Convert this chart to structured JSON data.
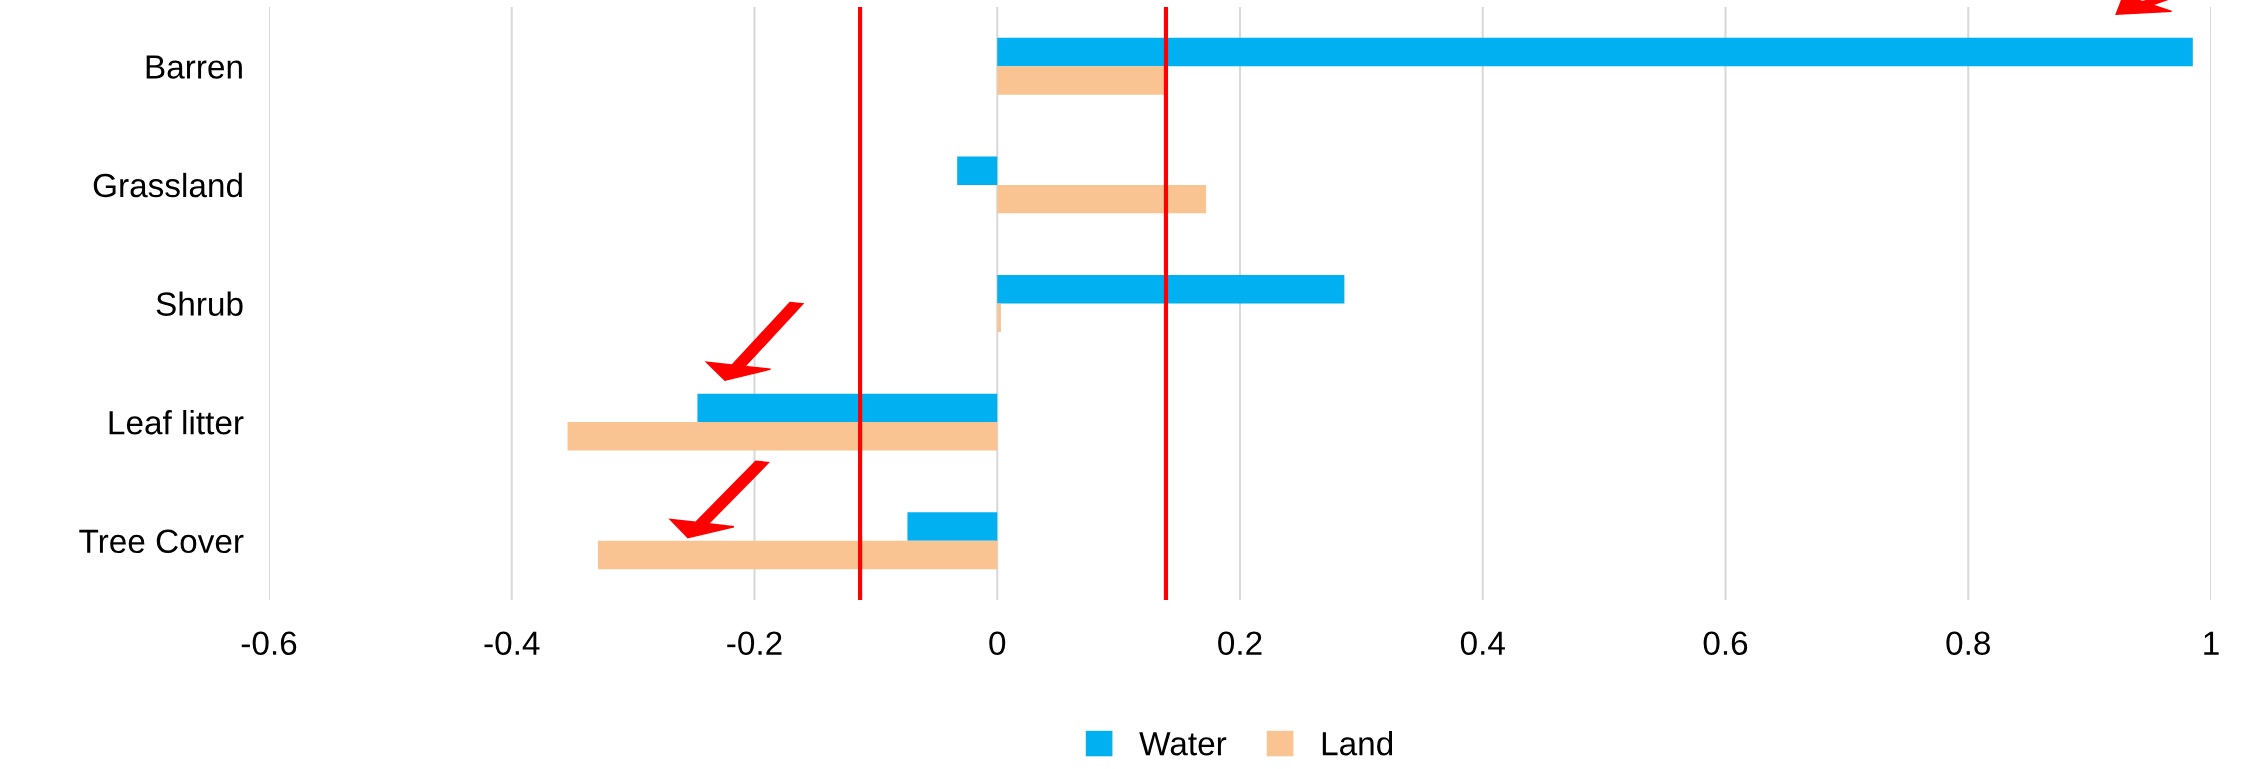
{
  "chart_data": {
    "type": "bar",
    "orientation": "horizontal",
    "categories": [
      "Barren",
      "Grassland",
      "Shrub",
      "Leaf litter",
      "Tree Cover"
    ],
    "series": [
      {
        "name": "Water",
        "color": "#00b0f0",
        "values": [
          0.985,
          -0.033,
          0.286,
          -0.247,
          -0.074
        ]
      },
      {
        "name": "Land",
        "color": "#f9c392",
        "values": [
          0.138,
          0.172,
          0.003,
          -0.354,
          -0.329
        ]
      }
    ],
    "xlim": [
      -0.6,
      1
    ],
    "xticks": [
      -0.6,
      -0.4,
      -0.2,
      0,
      0.2,
      0.4,
      0.6,
      0.8,
      1
    ],
    "grid": "x",
    "legend": "bottom",
    "ref_lines": [
      {
        "axis": "x",
        "value": -0.113,
        "color": "#ff0000"
      },
      {
        "axis": "x",
        "value": 0.139,
        "color": "#ff0000"
      }
    ]
  }
}
